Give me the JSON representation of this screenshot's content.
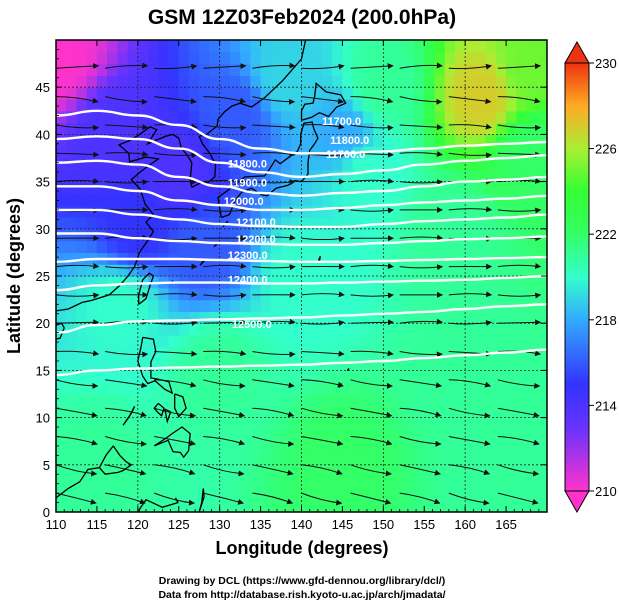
{
  "chart_data": {
    "type": "heatmap",
    "title": "GSM 12Z03Feb2024 (200.0hPa)",
    "xlabel": "Longitude (degrees)",
    "ylabel": "Latitude  (degrees)",
    "xlim": [
      110,
      170
    ],
    "ylim": [
      0,
      50
    ],
    "x_ticks": [
      110,
      115,
      120,
      125,
      130,
      135,
      140,
      145,
      150,
      155,
      160,
      165
    ],
    "y_ticks": [
      0,
      5,
      10,
      15,
      20,
      25,
      30,
      35,
      40,
      45
    ],
    "colorbar": {
      "range": [
        210,
        230
      ],
      "ticks": [
        210,
        214,
        218,
        222,
        226,
        230
      ],
      "colors": [
        "#ff33cc",
        "#3333ff",
        "#33ccff",
        "#33ff99",
        "#33ff33",
        "#aaee33",
        "#ffaa22",
        "#ee3311"
      ]
    },
    "heat_anchors": [
      {
        "lon": 110,
        "lat": 48,
        "value": 210
      },
      {
        "lon": 117,
        "lat": 40,
        "value": 214
      },
      {
        "lon": 125,
        "lat": 36,
        "value": 214
      },
      {
        "lon": 132,
        "lat": 42,
        "value": 216
      },
      {
        "lon": 120,
        "lat": 30,
        "value": 215
      },
      {
        "lon": 128,
        "lat": 28,
        "value": 216
      },
      {
        "lon": 138,
        "lat": 46,
        "value": 219
      },
      {
        "lon": 145,
        "lat": 40,
        "value": 218
      },
      {
        "lon": 148,
        "lat": 36,
        "value": 220
      },
      {
        "lon": 150,
        "lat": 45,
        "value": 221
      },
      {
        "lon": 162,
        "lat": 44,
        "value": 227
      },
      {
        "lon": 168,
        "lat": 47,
        "value": 225
      },
      {
        "lon": 168,
        "lat": 38,
        "value": 222
      },
      {
        "lon": 158,
        "lat": 30,
        "value": 221
      },
      {
        "lon": 140,
        "lat": 25,
        "value": 220
      },
      {
        "lon": 118,
        "lat": 22,
        "value": 220
      },
      {
        "lon": 130,
        "lat": 15,
        "value": 221
      },
      {
        "lon": 160,
        "lat": 15,
        "value": 221
      },
      {
        "lon": 115,
        "lat": 5,
        "value": 221
      },
      {
        "lon": 145,
        "lat": 5,
        "value": 222
      },
      {
        "lon": 165,
        "lat": 3,
        "value": 221
      }
    ],
    "contours": {
      "units": "geopotential height (m)",
      "lines": [
        {
          "value": 11700,
          "lats": [
            42.0,
            42.5,
            42.0,
            41.0,
            39.5,
            38.5,
            38.0,
            38.0,
            38.2,
            38.5,
            38.8,
            39.0,
            39.2
          ]
        },
        {
          "value": 11800,
          "lats": [
            39.5,
            39.8,
            39.5,
            38.5,
            37.0,
            36.0,
            35.5,
            35.8,
            36.2,
            36.8,
            37.2,
            37.5,
            37.8
          ]
        },
        {
          "value": 11900,
          "lats": [
            37.0,
            37.2,
            36.8,
            35.5,
            34.5,
            33.8,
            33.5,
            33.8,
            34.0,
            34.5,
            35.0,
            35.2,
            35.5
          ]
        },
        {
          "value": 12000,
          "lats": [
            34.5,
            34.5,
            34.0,
            33.0,
            32.5,
            32.0,
            32.0,
            32.2,
            32.5,
            32.8,
            33.0,
            33.2,
            33.5
          ]
        },
        {
          "value": 12100,
          "lats": [
            32.0,
            32.0,
            31.5,
            31.0,
            30.5,
            30.3,
            30.2,
            30.2,
            30.5,
            30.8,
            31.0,
            31.2,
            31.5
          ]
        },
        {
          "value": 12200,
          "lats": [
            29.5,
            29.5,
            29.0,
            28.7,
            28.5,
            28.4,
            28.3,
            28.3,
            28.5,
            28.7,
            28.9,
            29.0,
            29.2
          ]
        },
        {
          "value": 12300,
          "lats": [
            26.5,
            26.8,
            26.8,
            26.8,
            26.7,
            26.6,
            26.5,
            26.5,
            26.6,
            26.7,
            26.8,
            26.9,
            27.0
          ]
        },
        {
          "value": 12400,
          "lats": [
            23.5,
            24.0,
            24.2,
            24.3,
            24.3,
            24.2,
            24.2,
            24.3,
            24.4,
            24.5,
            24.6,
            24.8,
            25.0
          ]
        },
        {
          "value": 12500,
          "lats": [
            19.0,
            19.8,
            20.2,
            20.3,
            20.4,
            20.5,
            20.6,
            20.8,
            21.0,
            21.2,
            21.5,
            21.8,
            22.0
          ]
        },
        {
          "value": 12600,
          "lats": [
            14.5,
            15.0,
            15.2,
            15.3,
            15.4,
            15.5,
            15.6,
            15.8,
            16.0,
            16.3,
            16.6,
            16.9,
            17.2
          ]
        }
      ],
      "labels": [
        {
          "text": "11700.0",
          "lon": 142.5,
          "lat": 41.0
        },
        {
          "text": "11800.0",
          "lon": 131.0,
          "lat": 36.5
        },
        {
          "text": "11800.0",
          "lon": 143.5,
          "lat": 39.0
        },
        {
          "text": "11700.0",
          "lon": 143.0,
          "lat": 37.5
        },
        {
          "text": "11900.0",
          "lon": 131.0,
          "lat": 34.5
        },
        {
          "text": "12000.0",
          "lon": 130.5,
          "lat": 32.5
        },
        {
          "text": "12100.0",
          "lon": 132.0,
          "lat": 30.3
        },
        {
          "text": "12200.0",
          "lon": 132.0,
          "lat": 28.5
        },
        {
          "text": "12300.0",
          "lon": 131.0,
          "lat": 26.8
        },
        {
          "text": "12400.0",
          "lon": 131.0,
          "lat": 24.2
        },
        {
          "text": "12500.0",
          "lon": 131.5,
          "lat": 19.5
        }
      ]
    },
    "streamlines": {
      "rows_lat": [
        47,
        44,
        41,
        38,
        35,
        32,
        29,
        26,
        23,
        20,
        17,
        14,
        11,
        8,
        5,
        2
      ],
      "rows_dir_deg": [
        5,
        -10,
        -5,
        -3,
        0,
        0,
        0,
        0,
        0,
        2,
        -5,
        -12,
        -15,
        -15,
        -18,
        -20
      ]
    }
  },
  "credits": {
    "line1": "Drawing by DCL (https://www.gfd-dennou.org/library/dcl/)",
    "line2": "Data from http://database.rish.kyoto-u.ac.jp/arch/jmadata/"
  }
}
